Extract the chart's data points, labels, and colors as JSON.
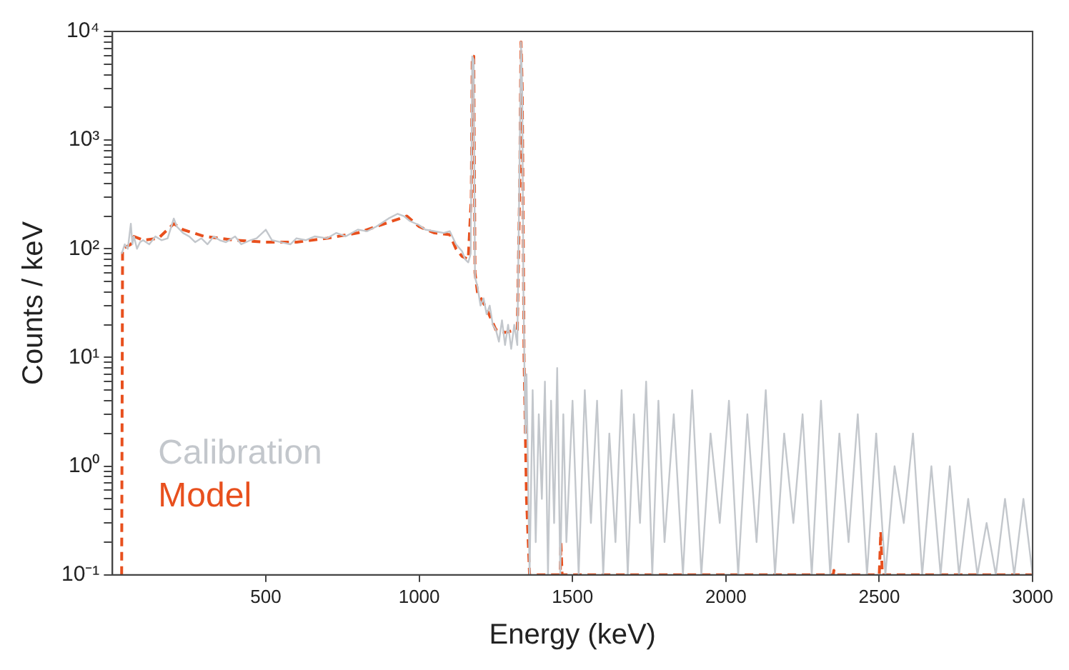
{
  "chart_data": {
    "type": "line",
    "xlabel": "Energy (keV)",
    "ylabel": "Counts / keV",
    "log": "y",
    "legend": "bottom left",
    "grid": false,
    "xlim": [
      0,
      3000
    ],
    "xticks": [
      500,
      1000,
      1500,
      2000,
      2500,
      3000
    ],
    "ylim": [
      0.1,
      10000
    ],
    "yticks": [
      {
        "value": 0.1,
        "label": "10⁻¹"
      },
      {
        "value": 0.2,
        "label": null
      },
      {
        "value": 0.3,
        "label": null
      },
      {
        "value": 0.4,
        "label": null
      },
      {
        "value": 0.5,
        "label": null
      },
      {
        "value": 0.6,
        "label": null
      },
      {
        "value": 0.7,
        "label": null
      },
      {
        "value": 0.8,
        "label": null
      },
      {
        "value": 0.9,
        "label": null
      },
      {
        "value": 1,
        "label": "10⁰"
      },
      {
        "value": 2,
        "label": null
      },
      {
        "value": 3,
        "label": null
      },
      {
        "value": 4,
        "label": null
      },
      {
        "value": 5,
        "label": null
      },
      {
        "value": 6,
        "label": null
      },
      {
        "value": 7,
        "label": null
      },
      {
        "value": 8,
        "label": null
      },
      {
        "value": 9,
        "label": null
      },
      {
        "value": 10,
        "label": "10¹"
      },
      {
        "value": 20,
        "label": null
      },
      {
        "value": 30,
        "label": null
      },
      {
        "value": 40,
        "label": null
      },
      {
        "value": 50,
        "label": null
      },
      {
        "value": 60,
        "label": null
      },
      {
        "value": 70,
        "label": null
      },
      {
        "value": 80,
        "label": null
      },
      {
        "value": 90,
        "label": null
      },
      {
        "value": 100,
        "label": "10²"
      },
      {
        "value": 200,
        "label": null
      },
      {
        "value": 300,
        "label": null
      },
      {
        "value": 400,
        "label": null
      },
      {
        "value": 500,
        "label": null
      },
      {
        "value": 600,
        "label": null
      },
      {
        "value": 700,
        "label": null
      },
      {
        "value": 800,
        "label": null
      },
      {
        "value": 900,
        "label": null
      },
      {
        "value": 1000,
        "label": "10³"
      },
      {
        "value": 2000,
        "label": null
      },
      {
        "value": 3000,
        "label": null
      },
      {
        "value": 4000,
        "label": null
      },
      {
        "value": 5000,
        "label": null
      },
      {
        "value": 6000,
        "label": null
      },
      {
        "value": 7000,
        "label": null
      },
      {
        "value": 8000,
        "label": null
      },
      {
        "value": 9000,
        "label": null
      },
      {
        "value": 10000,
        "label": "10⁴"
      }
    ],
    "series": [
      {
        "name": "Calibration",
        "color": "#c3c7cc",
        "line_style": "solid",
        "x": [
          30,
          40,
          50,
          60,
          65,
          70,
          80,
          90,
          100,
          120,
          140,
          160,
          180,
          200,
          210,
          230,
          250,
          270,
          290,
          310,
          330,
          350,
          370,
          400,
          420,
          450,
          470,
          500,
          520,
          550,
          580,
          600,
          630,
          660,
          700,
          730,
          760,
          800,
          830,
          860,
          900,
          930,
          950,
          970,
          1000,
          1020,
          1050,
          1080,
          1100,
          1120,
          1140,
          1150,
          1160,
          1168,
          1173,
          1178,
          1182,
          1190,
          1200,
          1210,
          1220,
          1230,
          1240,
          1250,
          1260,
          1270,
          1280,
          1290,
          1300,
          1310,
          1320,
          1326,
          1332,
          1336,
          1340,
          1346,
          1350,
          1360,
          1370,
          1380,
          1390,
          1400,
          1410,
          1420,
          1430,
          1440,
          1450,
          1460,
          1470,
          1480,
          1500,
          1520,
          1540,
          1560,
          1580,
          1600,
          1620,
          1640,
          1660,
          1680,
          1700,
          1720,
          1740,
          1760,
          1780,
          1800,
          1830,
          1860,
          1890,
          1920,
          1950,
          1980,
          2010,
          2040,
          2070,
          2100,
          2130,
          2160,
          2190,
          2220,
          2250,
          2280,
          2310,
          2340,
          2370,
          2400,
          2430,
          2460,
          2490,
          2520,
          2550,
          2580,
          2610,
          2640,
          2670,
          2700,
          2730,
          2760,
          2790,
          2820,
          2850,
          2880,
          2910,
          2940,
          2970,
          3000
        ],
        "values": [
          90,
          110,
          100,
          170,
          110,
          130,
          100,
          115,
          120,
          110,
          130,
          120,
          125,
          190,
          160,
          140,
          130,
          115,
          125,
          110,
          130,
          120,
          115,
          130,
          110,
          120,
          125,
          150,
          120,
          115,
          110,
          125,
          120,
          130,
          125,
          140,
          130,
          150,
          145,
          160,
          190,
          210,
          200,
          180,
          165,
          150,
          145,
          140,
          145,
          110,
          95,
          80,
          75,
          90,
          5900,
          5500,
          55,
          45,
          30,
          35,
          25,
          30,
          20,
          18,
          14,
          22,
          13,
          20,
          12,
          20,
          13,
          300,
          8000,
          3000,
          40,
          2,
          7,
          0.1,
          5,
          0.2,
          3,
          0.5,
          6,
          0.1,
          4,
          0.3,
          8,
          0.1,
          3,
          0.2,
          4,
          0.1,
          5,
          0.3,
          4,
          0.1,
          2,
          0.2,
          5,
          0.1,
          3,
          0.3,
          6,
          0.1,
          4,
          0.2,
          3,
          0.1,
          5,
          0.1,
          2,
          0.3,
          4,
          0.1,
          3,
          0.2,
          5,
          0.1,
          2,
          0.3,
          3,
          0.1,
          4,
          0.1,
          2,
          0.2,
          3,
          0.1,
          2,
          0.1,
          1,
          0.3,
          2,
          0.1,
          1,
          0.1,
          1,
          0.1,
          0.5,
          0.1,
          0.3,
          0.1,
          0.5,
          0.1,
          0.5,
          0.1
        ]
      },
      {
        "name": "Model",
        "color": "#e8501e",
        "line_style": "dashed",
        "x": [
          30,
          33,
          60,
          70,
          100,
          150,
          200,
          230,
          300,
          400,
          500,
          600,
          700,
          800,
          900,
          960,
          1000,
          1050,
          1100,
          1120,
          1140,
          1160,
          1170,
          1173,
          1178,
          1182,
          1190,
          1220,
          1250,
          1280,
          1320,
          1328,
          1332,
          1336,
          1342,
          1350,
          1360,
          1460,
          1462,
          1466,
          2350,
          2352,
          2356,
          2500,
          2505,
          2510,
          3000
        ],
        "values": [
          0.1,
          100,
          110,
          130,
          120,
          125,
          170,
          150,
          130,
          120,
          115,
          115,
          125,
          140,
          175,
          200,
          160,
          140,
          135,
          100,
          85,
          80,
          300,
          5900,
          5900,
          60,
          40,
          28,
          18,
          17,
          18,
          400,
          8000,
          3000,
          10,
          0.5,
          0.1,
          0.1,
          0.2,
          0.1,
          0.1,
          0.11,
          0.1,
          0.1,
          0.25,
          0.1,
          0.1
        ]
      }
    ]
  }
}
